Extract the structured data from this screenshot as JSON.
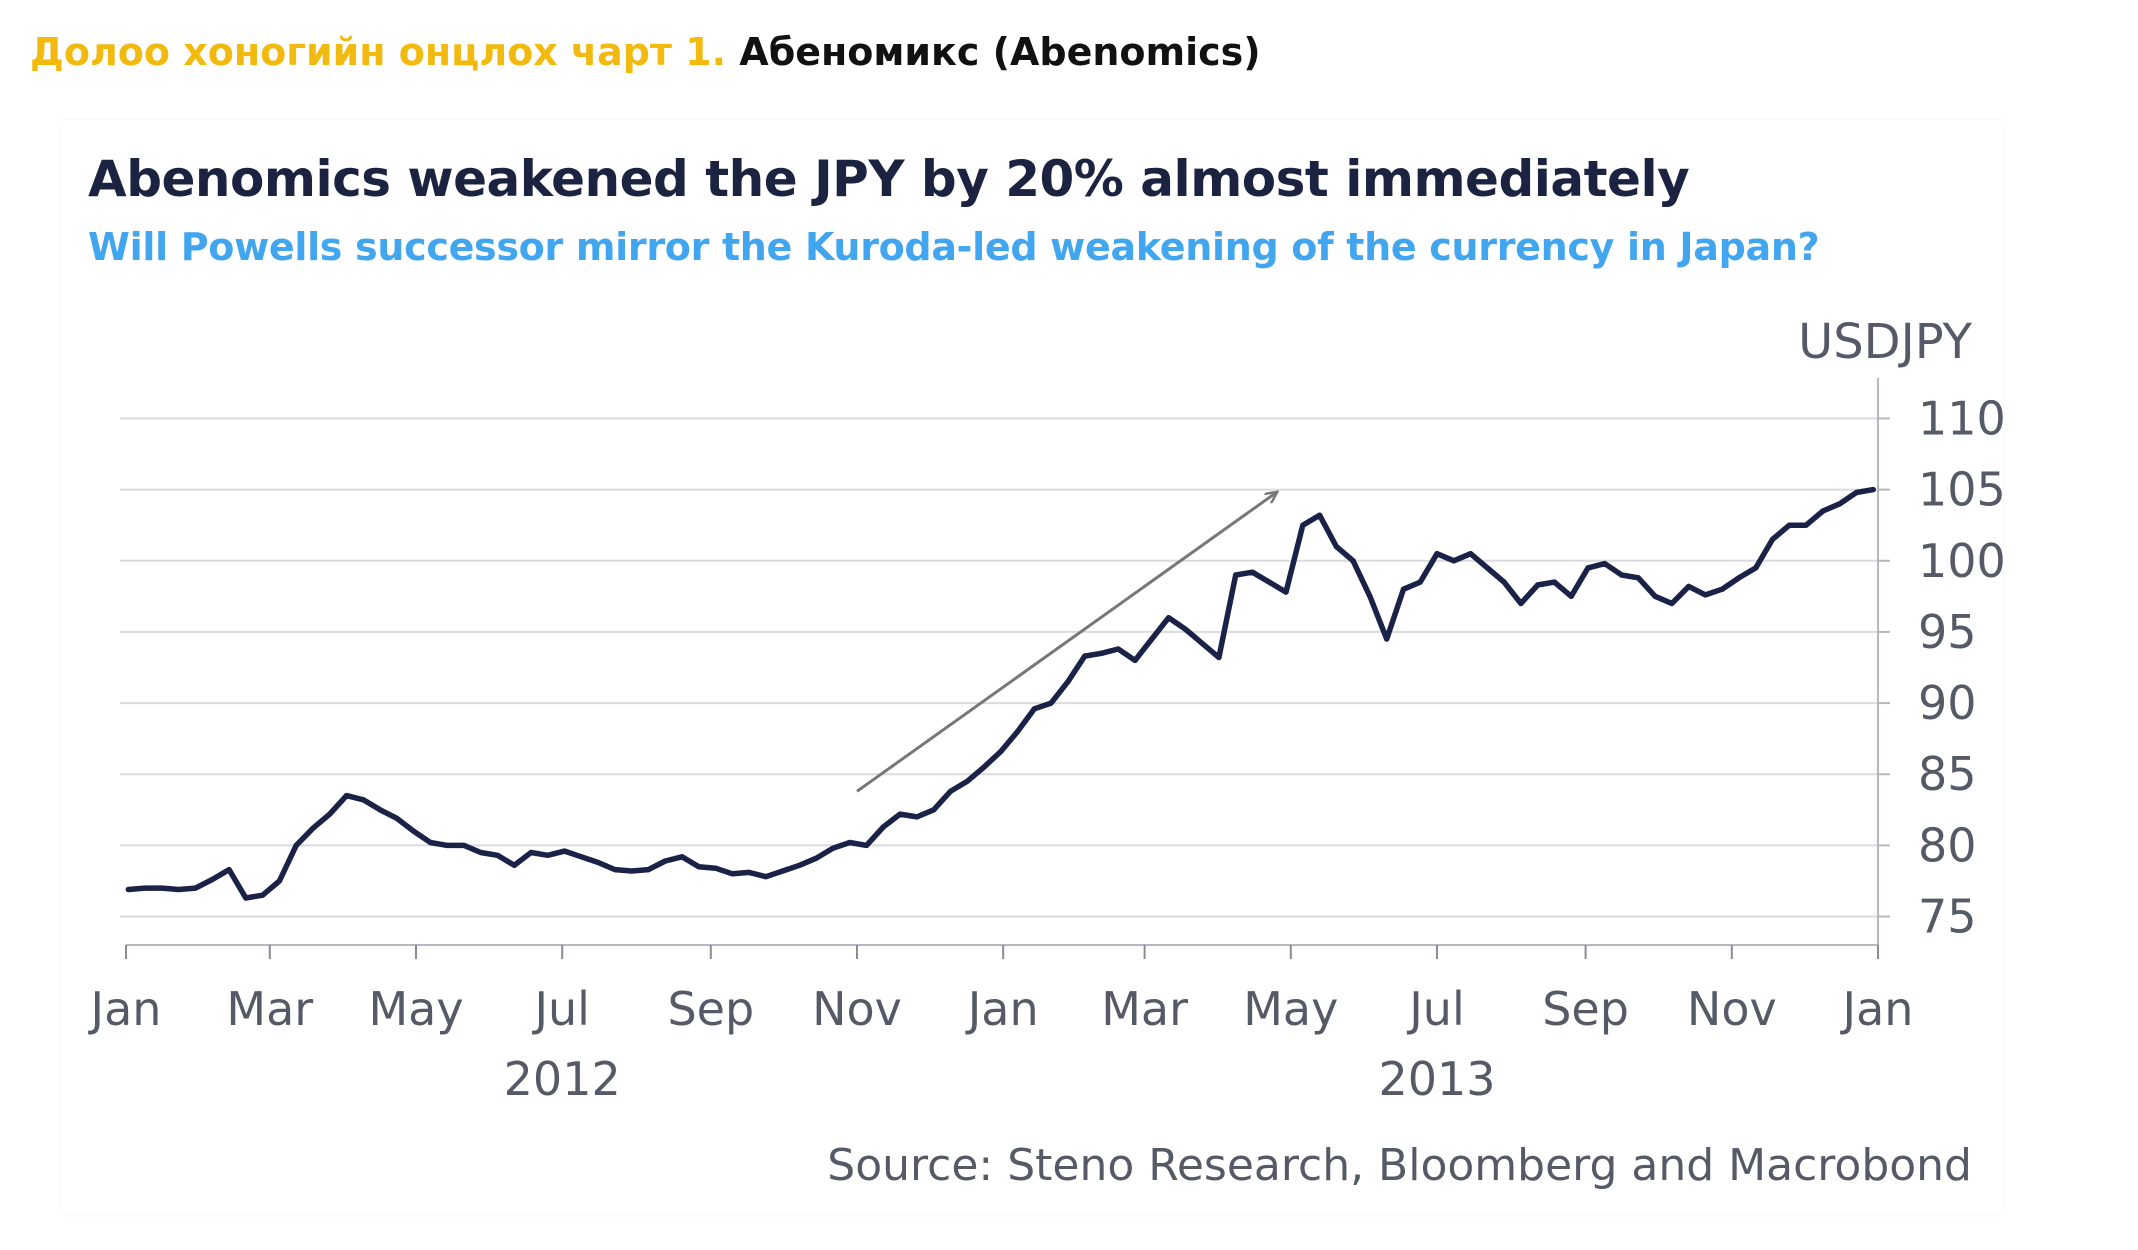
{
  "caption": {
    "prefix": "Долоо хоногийн онцлох чарт 1.",
    "name": "Абеномикс (Abenomics)"
  },
  "colors": {
    "caption_accent": "#f2b90f",
    "title": "#1c2340",
    "subtitle": "#41a6ef",
    "series_line": "#1b2247",
    "gridline": "#d9dbe0",
    "arrow": "#777777"
  },
  "chart_data": {
    "type": "line",
    "title": "Abenomics weakened the JPY by 20% almost immediately",
    "subtitle": "Will Powells successor mirror the Kuroda-led weakening of the currency in Japan?",
    "ylabel": "USDJPY",
    "source": "Source: Steno Research, Bloomberg and Macrobond",
    "yaxis_position": "right",
    "ylim": [
      73,
      112
    ],
    "yticks": [
      75,
      80,
      85,
      90,
      95,
      100,
      105,
      110
    ],
    "grid": true,
    "xlim": [
      "2012-01-01",
      "2014-01-01"
    ],
    "xticks": [
      {
        "date": "2012-01-01",
        "label": "Jan"
      },
      {
        "date": "2012-03-01",
        "label": "Mar"
      },
      {
        "date": "2012-05-01",
        "label": "May"
      },
      {
        "date": "2012-07-01",
        "label": "Jul"
      },
      {
        "date": "2012-09-01",
        "label": "Sep"
      },
      {
        "date": "2012-11-01",
        "label": "Nov"
      },
      {
        "date": "2013-01-01",
        "label": "Jan"
      },
      {
        "date": "2013-03-01",
        "label": "Mar"
      },
      {
        "date": "2013-05-01",
        "label": "May"
      },
      {
        "date": "2013-07-01",
        "label": "Jul"
      },
      {
        "date": "2013-09-01",
        "label": "Sep"
      },
      {
        "date": "2013-11-01",
        "label": "Nov"
      },
      {
        "date": "2014-01-01",
        "label": "Jan"
      }
    ],
    "year_labels": [
      {
        "date": "2012-07-01",
        "label": "2012"
      },
      {
        "date": "2013-07-01",
        "label": "2013"
      }
    ],
    "annotation_arrow": {
      "from": [
        "2012-11-01",
        83.8
      ],
      "to": [
        "2013-04-25",
        104.8
      ]
    },
    "series": [
      {
        "x": [
          "2012-01-02",
          "2012-01-09",
          "2012-01-16",
          "2012-01-23",
          "2012-01-30",
          "2012-02-06",
          "2012-02-13",
          "2012-02-20",
          "2012-02-27",
          "2012-03-05",
          "2012-03-12",
          "2012-03-19",
          "2012-03-26",
          "2012-04-02",
          "2012-04-09",
          "2012-04-16",
          "2012-04-23",
          "2012-04-30",
          "2012-05-07",
          "2012-05-14",
          "2012-05-21",
          "2012-05-28",
          "2012-06-04",
          "2012-06-11",
          "2012-06-18",
          "2012-06-25",
          "2012-07-02",
          "2012-07-09",
          "2012-07-16",
          "2012-07-23",
          "2012-07-30",
          "2012-08-06",
          "2012-08-13",
          "2012-08-20",
          "2012-08-27",
          "2012-09-03",
          "2012-09-10",
          "2012-09-17",
          "2012-09-24",
          "2012-10-01",
          "2012-10-08",
          "2012-10-15",
          "2012-10-22",
          "2012-10-29",
          "2012-11-05",
          "2012-11-12",
          "2012-11-19",
          "2012-11-26",
          "2012-12-03",
          "2012-12-10",
          "2012-12-17",
          "2012-12-24",
          "2012-12-31",
          "2013-01-07",
          "2013-01-14",
          "2013-01-21",
          "2013-01-28",
          "2013-02-04",
          "2013-02-11",
          "2013-02-18",
          "2013-02-25",
          "2013-03-04",
          "2013-03-11",
          "2013-03-18",
          "2013-03-25",
          "2013-04-01",
          "2013-04-08",
          "2013-04-15",
          "2013-04-22",
          "2013-04-29",
          "2013-05-06",
          "2013-05-13",
          "2013-05-20",
          "2013-05-27",
          "2013-06-03",
          "2013-06-10",
          "2013-06-17",
          "2013-06-24",
          "2013-07-01",
          "2013-07-08",
          "2013-07-15",
          "2013-07-22",
          "2013-07-29",
          "2013-08-05",
          "2013-08-12",
          "2013-08-19",
          "2013-08-26",
          "2013-09-02",
          "2013-09-09",
          "2013-09-16",
          "2013-09-23",
          "2013-09-30",
          "2013-10-07",
          "2013-10-14",
          "2013-10-21",
          "2013-10-28",
          "2013-11-04",
          "2013-11-11",
          "2013-11-18",
          "2013-11-25",
          "2013-12-02",
          "2013-12-09",
          "2013-12-16",
          "2013-12-23",
          "2013-12-30"
        ],
        "values": [
          76.9,
          77.0,
          77.0,
          76.9,
          77.0,
          77.6,
          78.3,
          76.3,
          76.5,
          77.5,
          80.0,
          81.2,
          82.2,
          83.5,
          83.2,
          82.5,
          81.9,
          81.0,
          80.2,
          80.0,
          80.0,
          79.5,
          79.3,
          78.6,
          79.5,
          79.3,
          79.6,
          79.2,
          78.8,
          78.3,
          78.2,
          78.3,
          78.9,
          79.2,
          78.5,
          78.4,
          78.0,
          78.1,
          77.8,
          78.2,
          78.6,
          79.1,
          79.8,
          80.2,
          80.0,
          81.3,
          82.2,
          82.0,
          82.5,
          83.8,
          84.5,
          85.5,
          86.6,
          88.0,
          89.6,
          90.0,
          91.5,
          93.3,
          93.5,
          93.8,
          93.0,
          94.5,
          96.0,
          95.2,
          94.2,
          93.2,
          99.0,
          99.2,
          98.5,
          97.8,
          102.5,
          103.2,
          101.0,
          100.0,
          97.5,
          94.5,
          98.0,
          98.5,
          100.5,
          100.0,
          100.5,
          99.5,
          98.5,
          97.0,
          98.3,
          98.5,
          97.5,
          99.5,
          99.8,
          99.0,
          98.8,
          97.5,
          97.0,
          98.2,
          97.6,
          98.0,
          98.8,
          99.5,
          101.5,
          102.5,
          102.5,
          103.5,
          104.0,
          104.8,
          105.0
        ]
      }
    ]
  }
}
